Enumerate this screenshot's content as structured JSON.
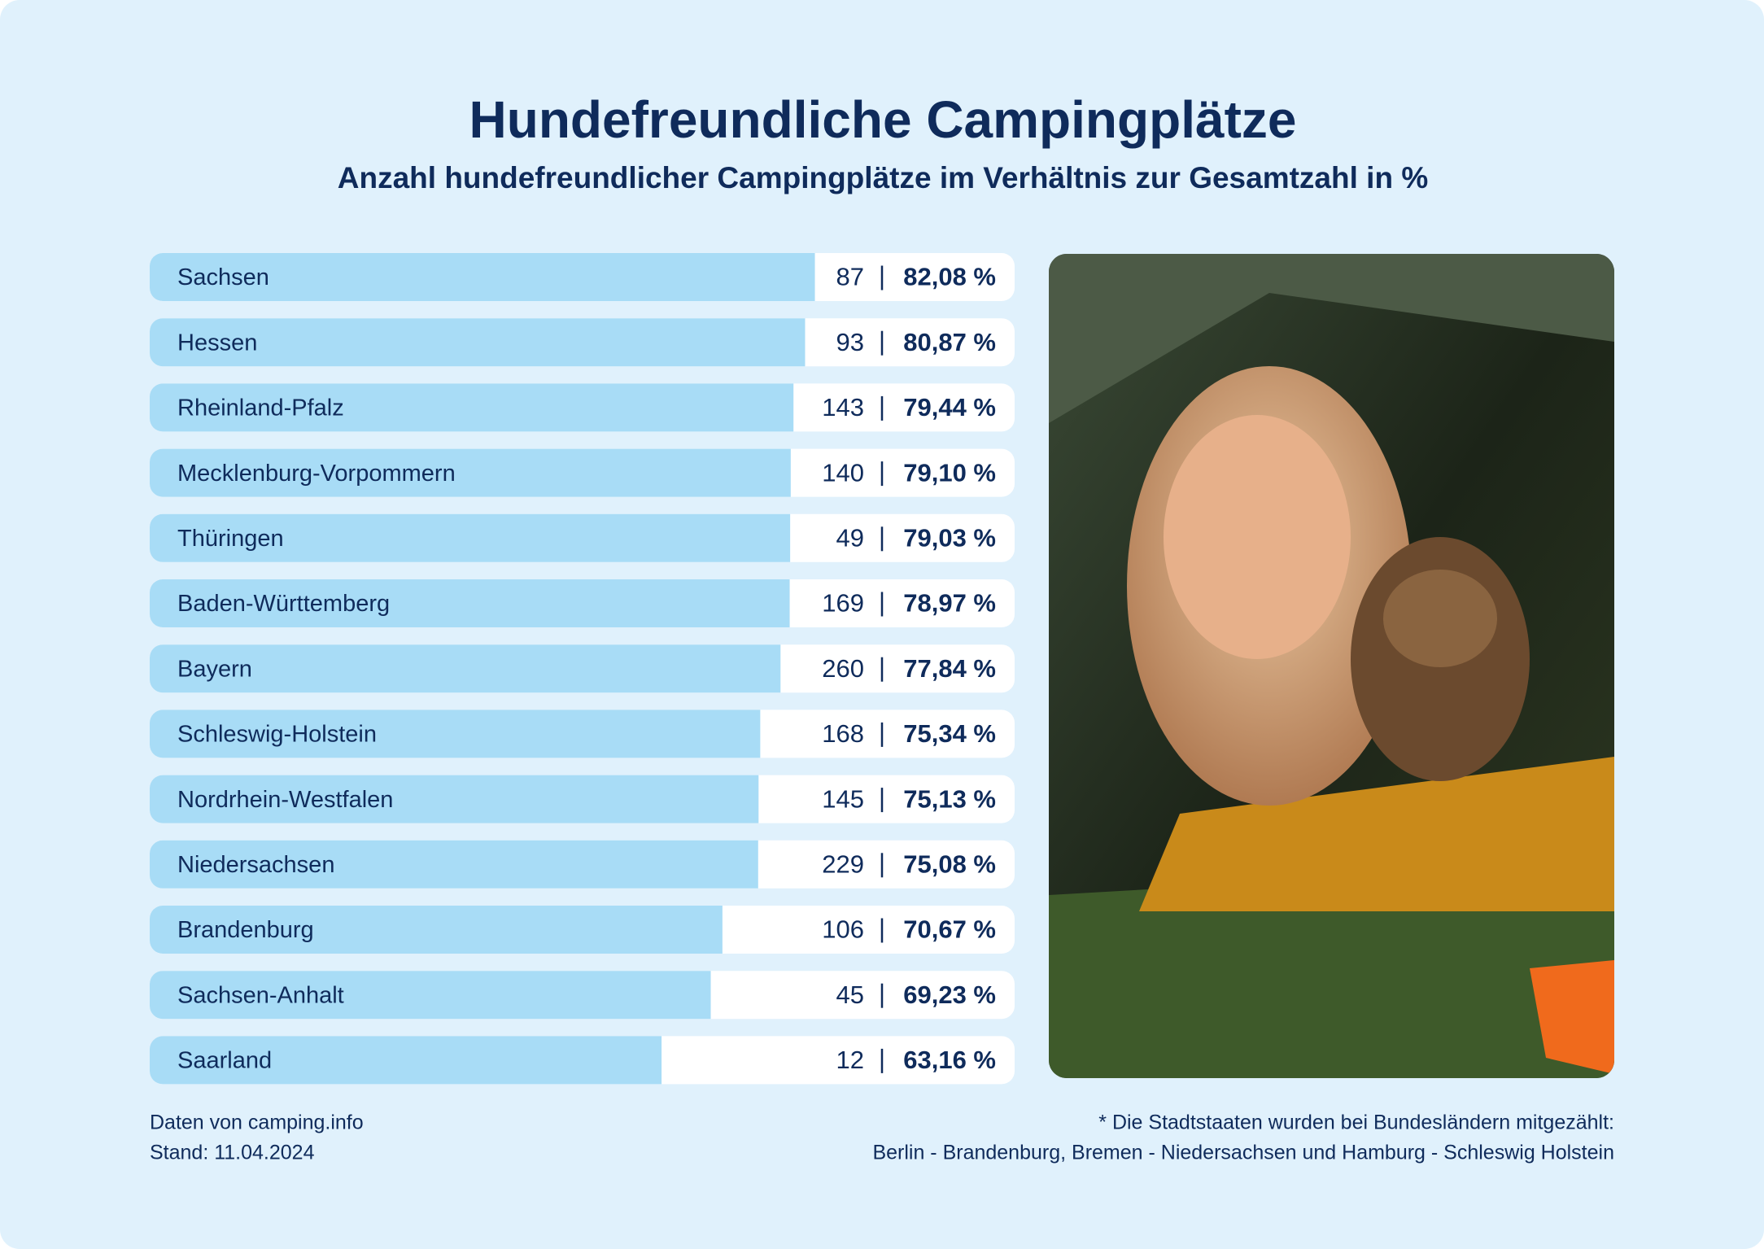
{
  "chart_data": {
    "type": "bar",
    "title": "Hundefreundliche Campingplätze",
    "subtitle": "Anzahl hundefreundlicher Campingplätze im Verhältnis zur Gesamtzahl in %",
    "categories": [
      "Sachsen",
      "Hessen",
      "Rheinland-Pfalz",
      "Mecklenburg-Vorpommern",
      "Thüringen",
      "Baden-Württemberg",
      "Bayern",
      "Schleswig-Holstein",
      "Nordrhein-Westfalen",
      "Niedersachsen",
      "Brandenburg",
      "Sachsen-Anhalt",
      "Saarland"
    ],
    "counts": [
      87,
      93,
      143,
      140,
      49,
      169,
      260,
      168,
      145,
      229,
      106,
      45,
      12
    ],
    "values": [
      82.08,
      80.87,
      79.44,
      79.1,
      79.03,
      78.97,
      77.84,
      75.34,
      75.13,
      75.08,
      70.67,
      69.23,
      63.16
    ],
    "value_labels": [
      "82,08 %",
      "80,87 %",
      "79,44 %",
      "79,10 %",
      "79,03 %",
      "78,97 %",
      "77,84 %",
      "75,34 %",
      "75,13 %",
      "75,08 %",
      "70,67 %",
      "69,23 %",
      "63,16 %"
    ],
    "color": "#a8dcf6",
    "source": [
      "Daten von camping.info",
      "Stand: 11.04.2024"
    ],
    "note": [
      "* Die Stadtstaaten wurden bei Bundesländern mitgezählt:",
      "Berlin - Brandenburg, Bremen - Niedersachsen und Hamburg - Schleswig Holstein"
    ]
  }
}
